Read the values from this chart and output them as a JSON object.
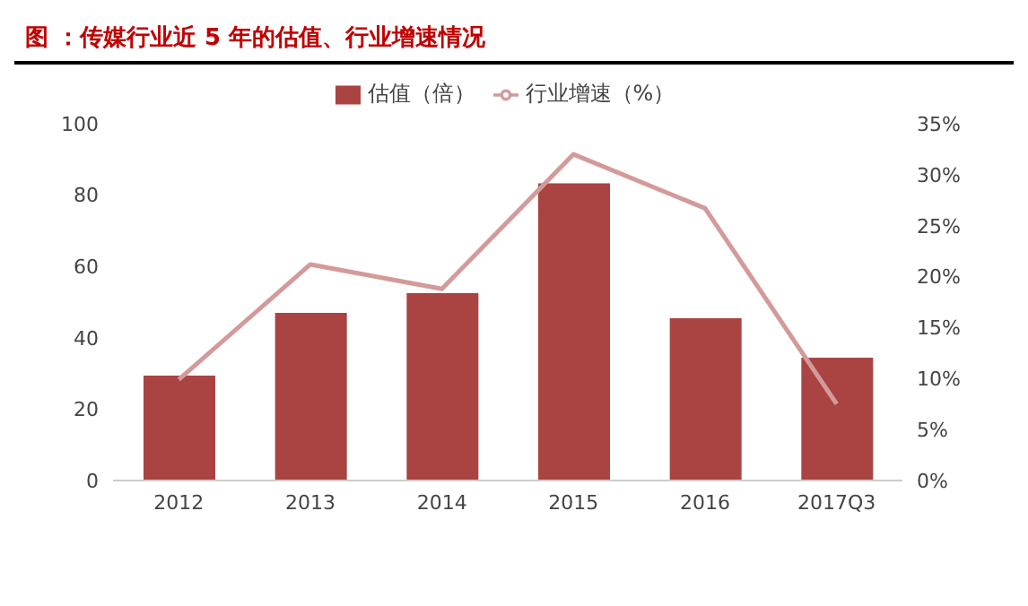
{
  "chart_data": {
    "type": "bar",
    "title": "图 ：传媒行业近 5 年的估值、行业增速情况",
    "categories": [
      "2012",
      "2013",
      "2014",
      "2015",
      "2016",
      "2017Q3"
    ],
    "series": [
      {
        "name": "估值（倍）",
        "color": "#a94442",
        "values": [
          29.4,
          47,
          52.5,
          83.3,
          45.5,
          34.4
        ]
      },
      {
        "name": "行业增速（%）",
        "type": "line",
        "axis": "y2",
        "color": "#d49a9a",
        "values": [
          9.9,
          21.2,
          18.8,
          32,
          26.7,
          7.5
        ]
      }
    ],
    "ylim": [
      0,
      100
    ],
    "yticks": [
      0,
      20,
      40,
      60,
      80,
      100
    ],
    "y2lim": [
      0,
      35
    ],
    "y2ticks": [
      {
        "value": 0,
        "label": "0%"
      },
      {
        "value": 5,
        "label": "5%"
      },
      {
        "value": 10,
        "label": "10%"
      },
      {
        "value": 15,
        "label": "15%"
      },
      {
        "value": 20,
        "label": "20%"
      },
      {
        "value": 25,
        "label": "25%"
      },
      {
        "value": 30,
        "label": "30%"
      },
      {
        "value": 35,
        "label": "35%"
      }
    ],
    "legend": "top",
    "grid": false,
    "marker": "none"
  }
}
